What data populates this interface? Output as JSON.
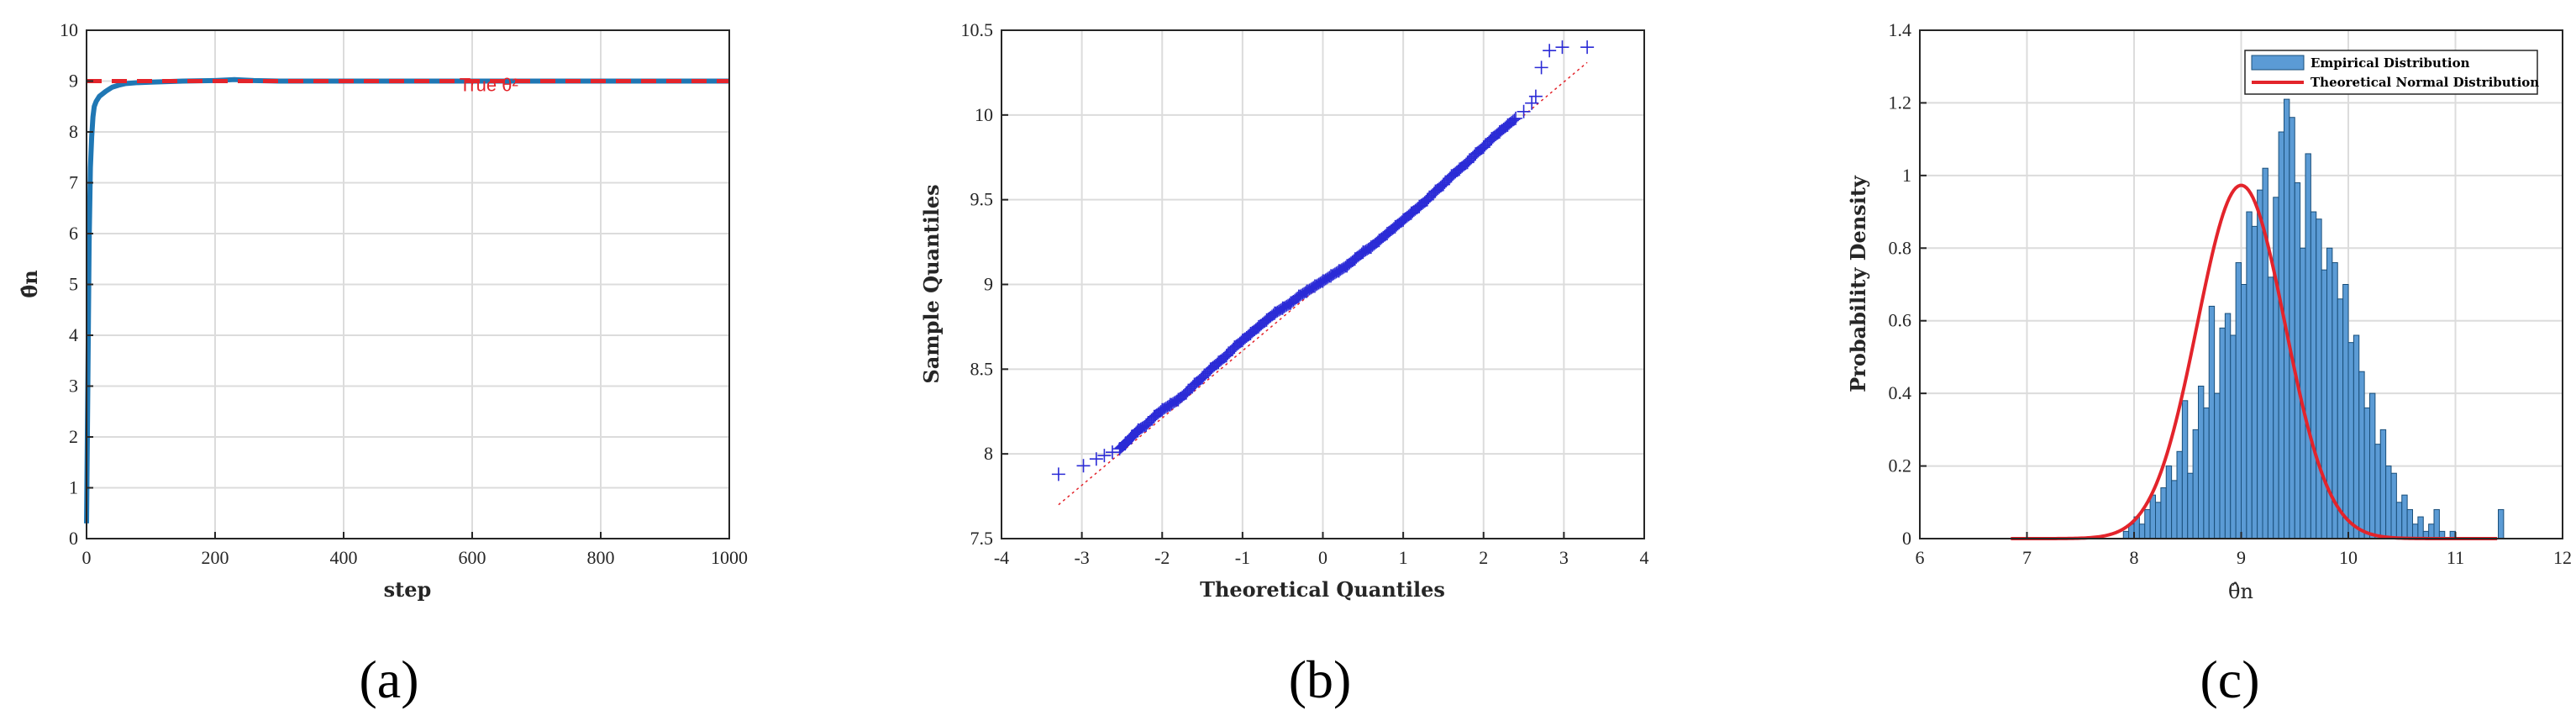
{
  "chart_data": [
    {
      "type": "line",
      "panel_label": "(a)",
      "xlabel": "step",
      "ylabel": "θ̂n",
      "xlim": [
        0,
        1000
      ],
      "ylim": [
        0,
        10
      ],
      "xticks": [
        "0",
        "200",
        "400",
        "600",
        "800",
        "1000"
      ],
      "yticks": [
        "0",
        "1",
        "2",
        "3",
        "4",
        "5",
        "6",
        "7",
        "8",
        "9",
        "10"
      ],
      "grid": true,
      "series": [
        {
          "color": "#1f77b4",
          "x": [
            0,
            2,
            4,
            6,
            8,
            10,
            12,
            15,
            20,
            25,
            30,
            40,
            50,
            60,
            80,
            100,
            150,
            200,
            230,
            260,
            300,
            400,
            500,
            600,
            700,
            800,
            900,
            1000
          ],
          "y": [
            0.3,
            3.0,
            5.8,
            7.3,
            7.9,
            8.3,
            8.5,
            8.6,
            8.7,
            8.75,
            8.8,
            8.88,
            8.92,
            8.95,
            8.97,
            8.98,
            9.0,
            9.01,
            9.03,
            9.01,
            9.0,
            9.0,
            9.0,
            9.0,
            9.0,
            9.0,
            9.0,
            9.0
          ]
        }
      ],
      "reference_line": {
        "y": 9,
        "color": "#e3242b",
        "style": "dashed",
        "label": "True θ²"
      }
    },
    {
      "type": "scatter",
      "panel_label": "(b)",
      "xlabel": "Theoretical Quantiles",
      "ylabel": "Sample Quantiles",
      "xlim": [
        -4,
        4
      ],
      "ylim": [
        7.5,
        10.5
      ],
      "xticks": [
        "-4",
        "-3",
        "-2",
        "-1",
        "0",
        "1",
        "2",
        "3",
        "4"
      ],
      "yticks": [
        "7.5",
        "8",
        "8.5",
        "9",
        "9.5",
        "10",
        "10.5"
      ],
      "grid": true,
      "marker": "+",
      "marker_color": "#2b2bd6",
      "points": {
        "x": [
          -3.29,
          -2.98,
          -2.82,
          -2.72,
          -2.62,
          -2.53,
          -2.46,
          -2.38,
          -2.3,
          -2.2,
          -2.1,
          -2.0,
          -1.9,
          -1.8,
          -1.7,
          -1.6,
          -1.5,
          -1.4,
          -1.3,
          -1.2,
          -1.1,
          -1.0,
          -0.9,
          -0.8,
          -0.7,
          -0.6,
          -0.5,
          -0.4,
          -0.3,
          -0.2,
          -0.1,
          0.0,
          0.1,
          0.2,
          0.3,
          0.4,
          0.5,
          0.6,
          0.7,
          0.8,
          0.9,
          1.0,
          1.1,
          1.2,
          1.3,
          1.4,
          1.5,
          1.6,
          1.7,
          1.8,
          1.9,
          2.0,
          2.1,
          2.2,
          2.3,
          2.4,
          2.5,
          2.6,
          2.65,
          2.72,
          2.82,
          2.98,
          3.29
        ],
        "y": [
          7.88,
          7.93,
          7.97,
          7.99,
          8.01,
          8.03,
          8.06,
          8.1,
          8.14,
          8.17,
          8.22,
          8.26,
          8.29,
          8.32,
          8.36,
          8.41,
          8.45,
          8.5,
          8.54,
          8.58,
          8.63,
          8.67,
          8.71,
          8.75,
          8.79,
          8.83,
          8.86,
          8.89,
          8.93,
          8.96,
          8.99,
          9.02,
          9.05,
          9.08,
          9.11,
          9.15,
          9.19,
          9.22,
          9.26,
          9.3,
          9.34,
          9.38,
          9.42,
          9.46,
          9.5,
          9.55,
          9.59,
          9.64,
          9.68,
          9.72,
          9.77,
          9.81,
          9.86,
          9.9,
          9.94,
          9.98,
          10.02,
          10.07,
          10.11,
          10.28,
          10.38,
          10.4,
          10.4
        ]
      },
      "reference_line": {
        "x": [
          -3.29,
          3.29
        ],
        "y": [
          7.7,
          10.31
        ],
        "color": "#e3242b",
        "style": "dotted"
      }
    },
    {
      "type": "bar",
      "panel_label": "(c)",
      "xlabel": "θ̂n",
      "ylabel": "Probability Density",
      "xlim": [
        6,
        12
      ],
      "ylim": [
        0,
        1.4
      ],
      "xticks": [
        "6",
        "7",
        "8",
        "9",
        "10",
        "11",
        "12"
      ],
      "yticks": [
        "0",
        "0.2",
        "0.4",
        "0.6",
        "0.8",
        "1",
        "1.2",
        "1.4"
      ],
      "grid": true,
      "legend_position": "top-right",
      "bin_width": 0.05,
      "bins_start": 7.9,
      "series": [
        {
          "name": "Empirical Distribution",
          "color": "#5b9bd5",
          "values": [
            0.02,
            0.04,
            0.06,
            0.04,
            0.08,
            0.12,
            0.1,
            0.14,
            0.2,
            0.16,
            0.24,
            0.38,
            0.18,
            0.3,
            0.42,
            0.36,
            0.64,
            0.4,
            0.58,
            0.62,
            0.56,
            0.76,
            0.7,
            0.9,
            0.86,
            0.96,
            1.02,
            0.72,
            0.94,
            1.12,
            1.21,
            1.16,
            0.98,
            0.8,
            1.06,
            0.9,
            0.88,
            0.74,
            0.8,
            0.76,
            0.66,
            0.7,
            0.54,
            0.56,
            0.46,
            0.36,
            0.4,
            0.26,
            0.3,
            0.2,
            0.18,
            0.1,
            0.12,
            0.08,
            0.04,
            0.06,
            0.02,
            0.04,
            0.08,
            0.02,
            0.0,
            0.02,
            0.0,
            0.0,
            0.0,
            0.0,
            0.0,
            0.0,
            0.0,
            0.0,
            0.08
          ]
        },
        {
          "name": "Theoretical Normal Distribution",
          "type": "line",
          "color": "#e3242b",
          "mean": 9.0,
          "sd": 0.41,
          "x_range": [
            6.85,
            11.4
          ]
        }
      ]
    }
  ]
}
